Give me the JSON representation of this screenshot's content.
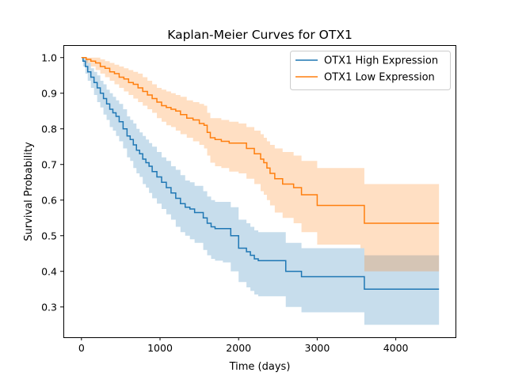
{
  "chart_data": {
    "type": "line",
    "step": true,
    "title": "Kaplan-Meier Curves for OTX1",
    "xlabel": "Time (days)",
    "ylabel": "Survival Probability",
    "xlim": [
      -230,
      4760
    ],
    "ylim": [
      0.215,
      1.035
    ],
    "xticks": [
      0,
      1000,
      2000,
      3000,
      4000
    ],
    "yticks": [
      0.3,
      0.4,
      0.5,
      0.6,
      0.7,
      0.8,
      0.9,
      1.0
    ],
    "ytick_labels": [
      "0.3",
      "0.4",
      "0.5",
      "0.6",
      "0.7",
      "0.8",
      "0.9",
      "1.0"
    ],
    "grid": false,
    "legend_position": "top-right",
    "series": [
      {
        "name": "OTX1 High Expression",
        "color": "#1f77b4",
        "band_color": "#1f77b4",
        "x": [
          0,
          20,
          50,
          80,
          120,
          160,
          200,
          240,
          280,
          320,
          360,
          400,
          440,
          480,
          530,
          580,
          620,
          660,
          700,
          740,
          780,
          820,
          860,
          900,
          960,
          1020,
          1080,
          1140,
          1200,
          1260,
          1320,
          1380,
          1440,
          1550,
          1600,
          1650,
          1700,
          1800,
          1900,
          2000,
          2100,
          2150,
          2200,
          2250,
          2600,
          2800,
          3600,
          4550
        ],
        "y": [
          1.0,
          0.99,
          0.975,
          0.96,
          0.945,
          0.93,
          0.915,
          0.9,
          0.885,
          0.87,
          0.855,
          0.845,
          0.835,
          0.82,
          0.8,
          0.78,
          0.77,
          0.755,
          0.74,
          0.73,
          0.715,
          0.705,
          0.695,
          0.68,
          0.665,
          0.65,
          0.635,
          0.62,
          0.605,
          0.59,
          0.58,
          0.575,
          0.565,
          0.55,
          0.535,
          0.525,
          0.52,
          0.52,
          0.5,
          0.465,
          0.455,
          0.445,
          0.435,
          0.43,
          0.4,
          0.385,
          0.35,
          0.35
        ],
        "lower": [
          1.0,
          0.975,
          0.955,
          0.935,
          0.915,
          0.895,
          0.875,
          0.86,
          0.84,
          0.825,
          0.805,
          0.795,
          0.78,
          0.765,
          0.745,
          0.72,
          0.71,
          0.69,
          0.675,
          0.665,
          0.645,
          0.635,
          0.62,
          0.605,
          0.59,
          0.575,
          0.56,
          0.545,
          0.525,
          0.51,
          0.5,
          0.49,
          0.48,
          0.46,
          0.445,
          0.435,
          0.43,
          0.425,
          0.4,
          0.37,
          0.355,
          0.345,
          0.335,
          0.33,
          0.3,
          0.285,
          0.25,
          0.25
        ],
        "upper": [
          1.0,
          1.0,
          0.995,
          0.985,
          0.97,
          0.96,
          0.95,
          0.935,
          0.925,
          0.91,
          0.9,
          0.89,
          0.88,
          0.87,
          0.855,
          0.835,
          0.825,
          0.815,
          0.8,
          0.79,
          0.78,
          0.77,
          0.76,
          0.75,
          0.735,
          0.72,
          0.71,
          0.695,
          0.685,
          0.67,
          0.655,
          0.65,
          0.64,
          0.625,
          0.61,
          0.6,
          0.595,
          0.595,
          0.58,
          0.545,
          0.535,
          0.525,
          0.515,
          0.51,
          0.48,
          0.465,
          0.445,
          0.445
        ]
      },
      {
        "name": "OTX1 Low Expression",
        "color": "#ff7f0e",
        "band_color": "#ff7f0e",
        "x": [
          0,
          60,
          120,
          180,
          240,
          300,
          360,
          420,
          480,
          540,
          600,
          660,
          720,
          780,
          840,
          900,
          960,
          1020,
          1080,
          1140,
          1200,
          1260,
          1340,
          1420,
          1500,
          1560,
          1600,
          1640,
          1700,
          1780,
          1880,
          2000,
          2100,
          2200,
          2280,
          2320,
          2360,
          2400,
          2460,
          2560,
          2700,
          2800,
          3000,
          3550,
          3600,
          4550
        ],
        "y": [
          1.0,
          0.995,
          0.99,
          0.985,
          0.975,
          0.97,
          0.96,
          0.955,
          0.945,
          0.94,
          0.93,
          0.925,
          0.915,
          0.905,
          0.895,
          0.885,
          0.875,
          0.865,
          0.86,
          0.855,
          0.85,
          0.84,
          0.83,
          0.825,
          0.815,
          0.81,
          0.79,
          0.775,
          0.77,
          0.765,
          0.76,
          0.76,
          0.745,
          0.73,
          0.715,
          0.705,
          0.69,
          0.675,
          0.66,
          0.645,
          0.635,
          0.615,
          0.585,
          0.585,
          0.535,
          0.535
        ],
        "lower": [
          1.0,
          0.985,
          0.975,
          0.965,
          0.955,
          0.945,
          0.935,
          0.925,
          0.915,
          0.905,
          0.895,
          0.885,
          0.875,
          0.865,
          0.855,
          0.845,
          0.83,
          0.82,
          0.81,
          0.805,
          0.795,
          0.785,
          0.775,
          0.765,
          0.755,
          0.745,
          0.725,
          0.705,
          0.695,
          0.69,
          0.68,
          0.675,
          0.66,
          0.645,
          0.625,
          0.615,
          0.6,
          0.585,
          0.565,
          0.55,
          0.535,
          0.51,
          0.475,
          0.465,
          0.4,
          0.4
        ],
        "upper": [
          1.0,
          1.0,
          1.0,
          1.0,
          0.995,
          0.99,
          0.985,
          0.98,
          0.975,
          0.97,
          0.965,
          0.96,
          0.955,
          0.945,
          0.935,
          0.925,
          0.915,
          0.91,
          0.905,
          0.9,
          0.895,
          0.89,
          0.88,
          0.875,
          0.87,
          0.865,
          0.845,
          0.83,
          0.83,
          0.825,
          0.82,
          0.815,
          0.805,
          0.795,
          0.785,
          0.775,
          0.765,
          0.755,
          0.745,
          0.735,
          0.725,
          0.71,
          0.69,
          0.69,
          0.645,
          0.645
        ]
      }
    ]
  }
}
